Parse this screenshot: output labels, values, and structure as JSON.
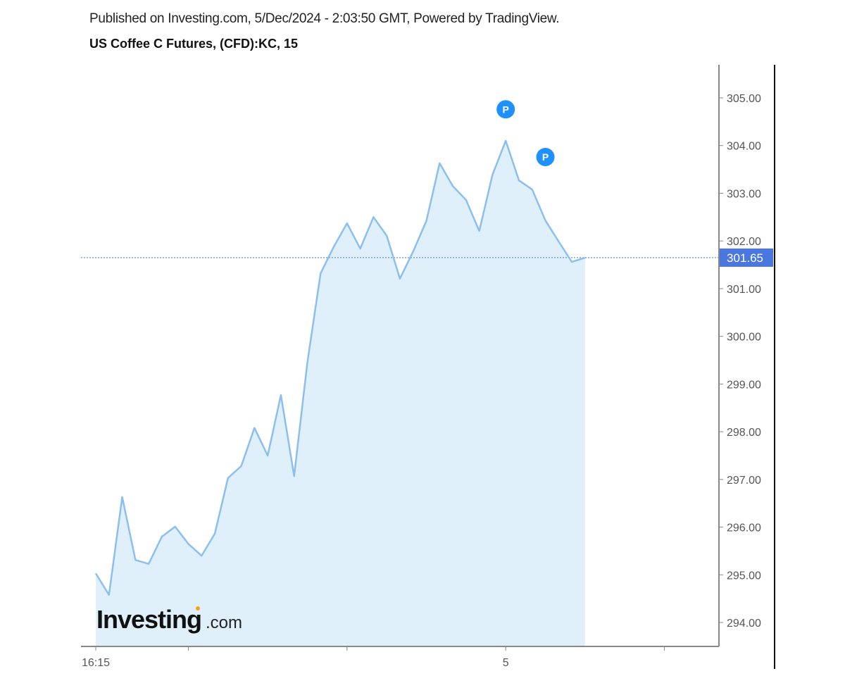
{
  "header": {
    "published": "Published on Investing.com, 5/Dec/2024 - 2:03:50 GMT, Powered by TradingView.",
    "title": "US Coffee C Futures, (CFD):KC, 15"
  },
  "logo": {
    "text": "Investing",
    "suffix": ".com"
  },
  "chart_data": {
    "type": "area",
    "title": "US Coffee C Futures, (CFD):KC, 15",
    "interval_minutes": 15,
    "start_time": "16:15",
    "values": [
      295.03,
      294.58,
      296.63,
      295.31,
      295.23,
      295.8,
      296.01,
      295.65,
      295.4,
      295.86,
      297.03,
      297.28,
      298.08,
      297.5,
      298.77,
      297.07,
      299.45,
      301.32,
      301.88,
      302.37,
      301.84,
      302.5,
      302.11,
      301.21,
      301.78,
      302.42,
      303.63,
      303.15,
      302.86,
      302.21,
      303.39,
      304.1,
      303.27,
      303.08,
      302.43,
      301.99,
      301.56,
      301.65
    ],
    "ylim": [
      293.5,
      305.7
    ],
    "yticks": [
      "294.00",
      "295.00",
      "296.00",
      "297.00",
      "298.00",
      "299.00",
      "300.00",
      "301.00",
      "302.00",
      "303.00",
      "304.00",
      "305.00"
    ],
    "xticks": [
      {
        "bar": 0,
        "label": "16:15"
      },
      {
        "bar": 7,
        "label": ""
      },
      {
        "bar": 19,
        "label": ""
      },
      {
        "bar": 31,
        "label": "5"
      },
      {
        "bar": 43,
        "label": ""
      }
    ],
    "last_price": "301.65",
    "last_value": 301.65,
    "markers": [
      {
        "bar": 31,
        "value": 304.76,
        "label": "P"
      },
      {
        "bar": 34,
        "value": 303.76,
        "label": "P"
      }
    ],
    "colors": {
      "line": "#8cbff0",
      "fill": "#e0f0fa",
      "price_label": "#4a76e0",
      "marker": "#1e90ff"
    },
    "grid": false
  }
}
